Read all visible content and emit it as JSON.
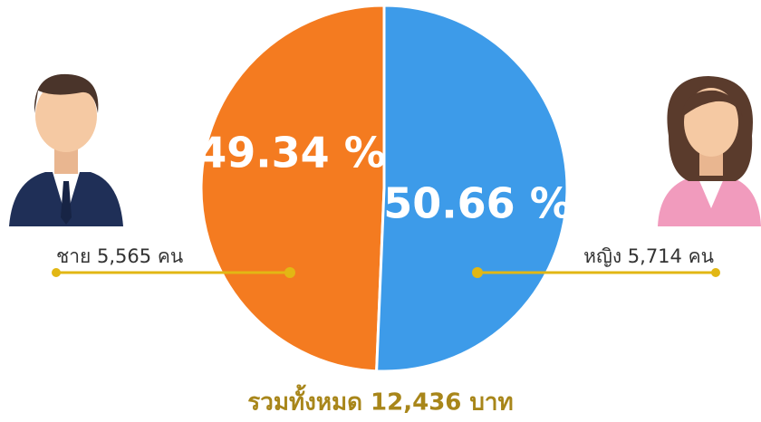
{
  "chart_data": {
    "type": "pie",
    "values": [
      49.34,
      50.66
    ],
    "value_labels": [
      "49.34 %",
      "50.66 %"
    ],
    "colors": [
      "#f47b20",
      "#3d9be9"
    ],
    "annotations": [
      "ชาย 5,565 คน",
      "หญิง 5,714 คน",
      "รวมทั้งหมด 12,436 บาท"
    ]
  }
}
